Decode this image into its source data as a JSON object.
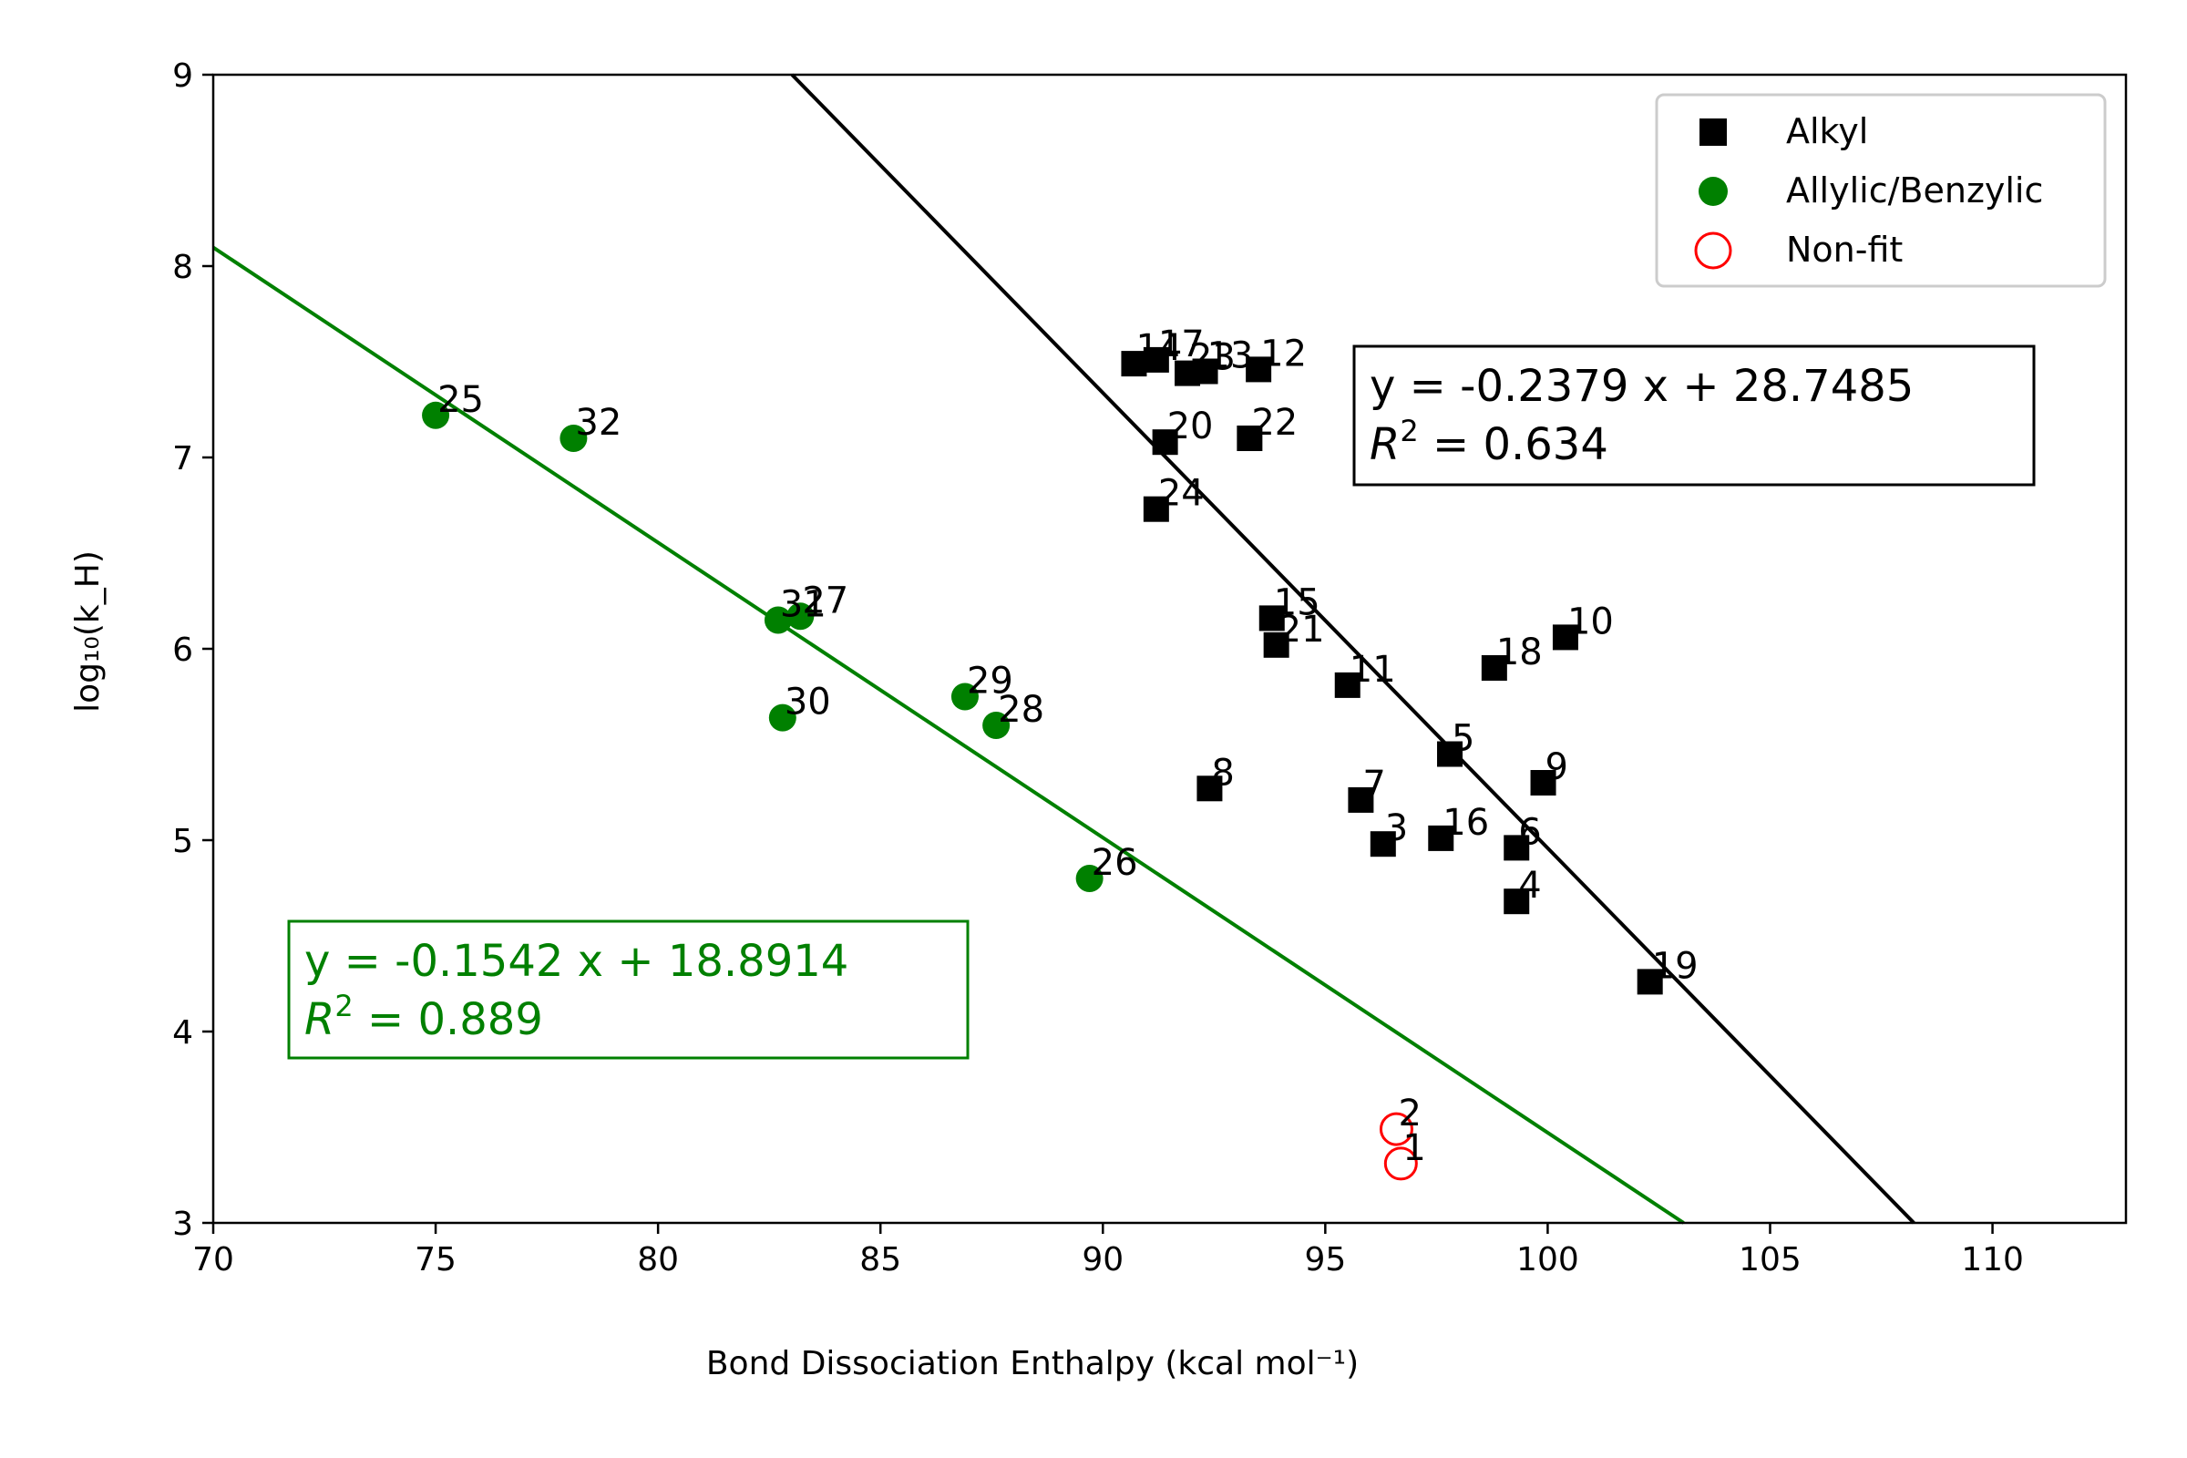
{
  "chart_data": {
    "type": "scatter",
    "xlabel": "Bond Dissociation Enthalpy (kcal mol⁻¹)",
    "ylabel": "log₁₀(k_H)",
    "xlim": [
      70,
      113
    ],
    "ylim": [
      3,
      9
    ],
    "x_ticks": [
      70,
      75,
      80,
      85,
      90,
      95,
      100,
      105,
      110
    ],
    "y_ticks": [
      3,
      4,
      5,
      6,
      7,
      8,
      9
    ],
    "grid": false,
    "legend_position": "top-right",
    "series": [
      {
        "name": "Alkyl",
        "marker": "square",
        "color": "#000000",
        "points": [
          {
            "label": "14",
            "x": 90.7,
            "y": 7.49
          },
          {
            "label": "17",
            "x": 91.2,
            "y": 7.51
          },
          {
            "label": "23",
            "x": 91.9,
            "y": 7.44
          },
          {
            "label": "13",
            "x": 92.3,
            "y": 7.45
          },
          {
            "label": "12",
            "x": 93.5,
            "y": 7.46
          },
          {
            "label": "20",
            "x": 91.4,
            "y": 7.08
          },
          {
            "label": "22",
            "x": 93.3,
            "y": 7.1
          },
          {
            "label": "24",
            "x": 91.2,
            "y": 6.73
          },
          {
            "label": "15",
            "x": 93.8,
            "y": 6.16
          },
          {
            "label": "21",
            "x": 93.9,
            "y": 6.02
          },
          {
            "label": "11",
            "x": 95.5,
            "y": 5.81
          },
          {
            "label": "18",
            "x": 98.8,
            "y": 5.9
          },
          {
            "label": "10",
            "x": 100.4,
            "y": 6.06
          },
          {
            "label": "5",
            "x": 97.8,
            "y": 5.45
          },
          {
            "label": "9",
            "x": 99.9,
            "y": 5.3
          },
          {
            "label": "8",
            "x": 92.4,
            "y": 5.27
          },
          {
            "label": "7",
            "x": 95.8,
            "y": 5.21
          },
          {
            "label": "3",
            "x": 96.3,
            "y": 4.98
          },
          {
            "label": "16",
            "x": 97.6,
            "y": 5.01
          },
          {
            "label": "6",
            "x": 99.3,
            "y": 4.96
          },
          {
            "label": "4",
            "x": 99.3,
            "y": 4.68
          },
          {
            "label": "19",
            "x": 102.3,
            "y": 4.26
          }
        ]
      },
      {
        "name": "Allylic/Benzylic",
        "marker": "circle",
        "color": "#008000",
        "points": [
          {
            "label": "25",
            "x": 75.0,
            "y": 7.22
          },
          {
            "label": "32",
            "x": 78.1,
            "y": 7.1
          },
          {
            "label": "31",
            "x": 82.7,
            "y": 6.15
          },
          {
            "label": "27",
            "x": 83.2,
            "y": 6.17
          },
          {
            "label": "30",
            "x": 82.8,
            "y": 5.64
          },
          {
            "label": "29",
            "x": 86.9,
            "y": 5.75
          },
          {
            "label": "28",
            "x": 87.6,
            "y": 5.6
          },
          {
            "label": "26",
            "x": 89.7,
            "y": 4.8
          }
        ]
      },
      {
        "name": "Non-fit",
        "marker": "open-circle",
        "color": "#ff0000",
        "points": [
          {
            "label": "2",
            "x": 96.6,
            "y": 3.49
          },
          {
            "label": "1",
            "x": 96.7,
            "y": 3.31
          }
        ]
      }
    ],
    "fits": [
      {
        "color": "#000000",
        "slope": -0.2379,
        "intercept": 28.7485,
        "equation": "y = -0.2379 x + 28.7485",
        "r2_label": "R",
        "r2_value": " = 0.634",
        "r2_exponent": "2"
      },
      {
        "color": "#008000",
        "slope": -0.1542,
        "intercept": 18.8914,
        "equation": "y = -0.1542 x + 18.8914",
        "r2_label": "R",
        "r2_value": " = 0.889",
        "r2_exponent": "2"
      }
    ]
  }
}
